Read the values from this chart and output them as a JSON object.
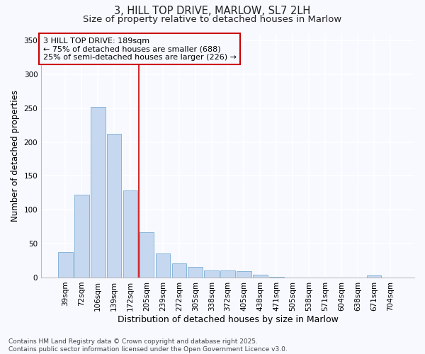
{
  "title": "3, HILL TOP DRIVE, MARLOW, SL7 2LH",
  "subtitle": "Size of property relative to detached houses in Marlow",
  "xlabel": "Distribution of detached houses by size in Marlow",
  "ylabel": "Number of detached properties",
  "categories": [
    "39sqm",
    "72sqm",
    "106sqm",
    "139sqm",
    "172sqm",
    "205sqm",
    "239sqm",
    "272sqm",
    "305sqm",
    "338sqm",
    "372sqm",
    "405sqm",
    "438sqm",
    "471sqm",
    "505sqm",
    "538sqm",
    "571sqm",
    "604sqm",
    "638sqm",
    "671sqm",
    "704sqm"
  ],
  "values": [
    38,
    122,
    252,
    212,
    129,
    67,
    35,
    21,
    16,
    10,
    10,
    9,
    4,
    1,
    0,
    0,
    0,
    0,
    0,
    3,
    0
  ],
  "bar_color": "#c5d8f0",
  "bar_edge_color": "#7badd4",
  "background_color": "#f7f9ff",
  "grid_color": "#ffffff",
  "ylim": [
    0,
    360
  ],
  "yticks": [
    0,
    50,
    100,
    150,
    200,
    250,
    300,
    350
  ],
  "annotation_text": "3 HILL TOP DRIVE: 189sqm\n← 75% of detached houses are smaller (688)\n25% of semi-detached houses are larger (226) →",
  "vline_x_index": 4.5,
  "annotation_box_color": "#cc0000",
  "footer_text": "Contains HM Land Registry data © Crown copyright and database right 2025.\nContains public sector information licensed under the Open Government Licence v3.0.",
  "title_fontsize": 10.5,
  "subtitle_fontsize": 9.5,
  "xlabel_fontsize": 9,
  "ylabel_fontsize": 8.5,
  "tick_fontsize": 7.5,
  "annotation_fontsize": 8,
  "footer_fontsize": 6.5
}
